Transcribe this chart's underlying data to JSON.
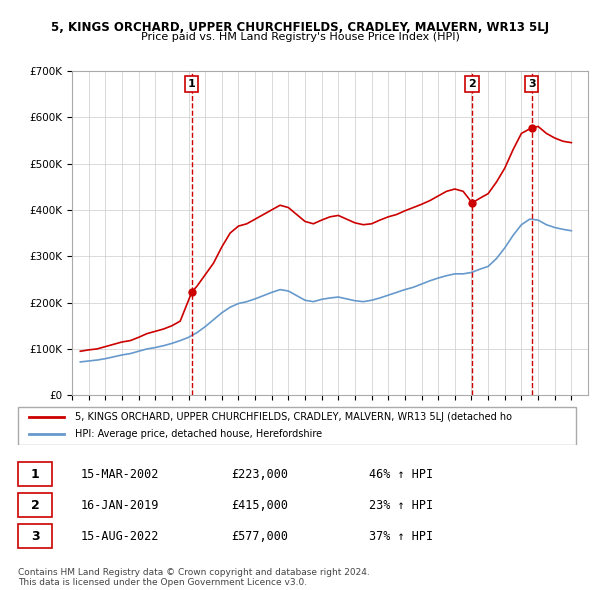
{
  "title": "5, KINGS ORCHARD, UPPER CHURCHFIELDS, CRADLEY, MALVERN, WR13 5LJ",
  "subtitle": "Price paid vs. HM Land Registry's House Price Index (HPI)",
  "ylabel_ticks": [
    "£0",
    "£100K",
    "£200K",
    "£300K",
    "£400K",
    "£500K",
    "£600K",
    "£700K"
  ],
  "ylim": [
    0,
    700000
  ],
  "xlim_start": 1995.0,
  "xlim_end": 2026.0,
  "sale_dates": [
    2002.2,
    2019.04,
    2022.62
  ],
  "sale_prices": [
    223000,
    415000,
    577000
  ],
  "sale_labels": [
    "1",
    "2",
    "3"
  ],
  "sale_info": [
    {
      "label": "1",
      "date": "15-MAR-2002",
      "price": "£223,000",
      "pct": "46% ↑ HPI"
    },
    {
      "label": "2",
      "date": "16-JAN-2019",
      "price": "£415,000",
      "pct": "23% ↑ HPI"
    },
    {
      "label": "3",
      "date": "15-AUG-2022",
      "price": "£577,000",
      "pct": "37% ↑ HPI"
    }
  ],
  "legend_red": "5, KINGS ORCHARD, UPPER CHURCHFIELDS, CRADLEY, MALVERN, WR13 5LJ (detached ho",
  "legend_blue": "HPI: Average price, detached house, Herefordshire",
  "footer1": "Contains HM Land Registry data © Crown copyright and database right 2024.",
  "footer2": "This data is licensed under the Open Government Licence v3.0.",
  "red_color": "#cc0000",
  "blue_color": "#6699cc",
  "dashed_color": "#cc0000",
  "bg_color": "#ffffff",
  "grid_color": "#cccccc",
  "hpi_red_data": {
    "years": [
      1995.5,
      1996.0,
      1996.5,
      1997.0,
      1997.5,
      1998.0,
      1998.5,
      1999.0,
      1999.5,
      2000.0,
      2000.5,
      2001.0,
      2001.5,
      2002.2,
      2002.5,
      2003.0,
      2003.5,
      2004.0,
      2004.5,
      2005.0,
      2005.5,
      2006.0,
      2006.5,
      2007.0,
      2007.5,
      2008.0,
      2008.5,
      2009.0,
      2009.5,
      2010.0,
      2010.5,
      2011.0,
      2011.5,
      2012.0,
      2012.5,
      2013.0,
      2013.5,
      2014.0,
      2014.5,
      2015.0,
      2015.5,
      2016.0,
      2016.5,
      2017.0,
      2017.5,
      2018.0,
      2018.5,
      2019.04,
      2019.5,
      2020.0,
      2020.5,
      2021.0,
      2021.5,
      2022.0,
      2022.62,
      2023.0,
      2023.5,
      2024.0,
      2024.5,
      2025.0
    ],
    "values": [
      95000,
      98000,
      100000,
      105000,
      110000,
      115000,
      118000,
      125000,
      133000,
      138000,
      143000,
      150000,
      160000,
      223000,
      235000,
      260000,
      285000,
      320000,
      350000,
      365000,
      370000,
      380000,
      390000,
      400000,
      410000,
      405000,
      390000,
      375000,
      370000,
      378000,
      385000,
      388000,
      380000,
      372000,
      368000,
      370000,
      378000,
      385000,
      390000,
      398000,
      405000,
      412000,
      420000,
      430000,
      440000,
      445000,
      440000,
      415000,
      425000,
      435000,
      460000,
      490000,
      530000,
      565000,
      577000,
      580000,
      565000,
      555000,
      548000,
      545000
    ]
  },
  "hpi_blue_data": {
    "years": [
      1995.5,
      1996.0,
      1996.5,
      1997.0,
      1997.5,
      1998.0,
      1998.5,
      1999.0,
      1999.5,
      2000.0,
      2000.5,
      2001.0,
      2001.5,
      2002.0,
      2002.5,
      2003.0,
      2003.5,
      2004.0,
      2004.5,
      2005.0,
      2005.5,
      2006.0,
      2006.5,
      2007.0,
      2007.5,
      2008.0,
      2008.5,
      2009.0,
      2009.5,
      2010.0,
      2010.5,
      2011.0,
      2011.5,
      2012.0,
      2012.5,
      2013.0,
      2013.5,
      2014.0,
      2014.5,
      2015.0,
      2015.5,
      2016.0,
      2016.5,
      2017.0,
      2017.5,
      2018.0,
      2018.5,
      2019.0,
      2019.5,
      2020.0,
      2020.5,
      2021.0,
      2021.5,
      2022.0,
      2022.5,
      2023.0,
      2023.5,
      2024.0,
      2024.5,
      2025.0
    ],
    "values": [
      72000,
      74000,
      76000,
      79000,
      83000,
      87000,
      90000,
      95000,
      100000,
      103000,
      107000,
      112000,
      118000,
      125000,
      135000,
      148000,
      163000,
      178000,
      190000,
      198000,
      202000,
      208000,
      215000,
      222000,
      228000,
      225000,
      215000,
      205000,
      202000,
      207000,
      210000,
      212000,
      208000,
      204000,
      202000,
      205000,
      210000,
      216000,
      222000,
      228000,
      233000,
      240000,
      247000,
      253000,
      258000,
      262000,
      262000,
      265000,
      272000,
      278000,
      295000,
      318000,
      345000,
      368000,
      380000,
      378000,
      368000,
      362000,
      358000,
      355000
    ]
  }
}
